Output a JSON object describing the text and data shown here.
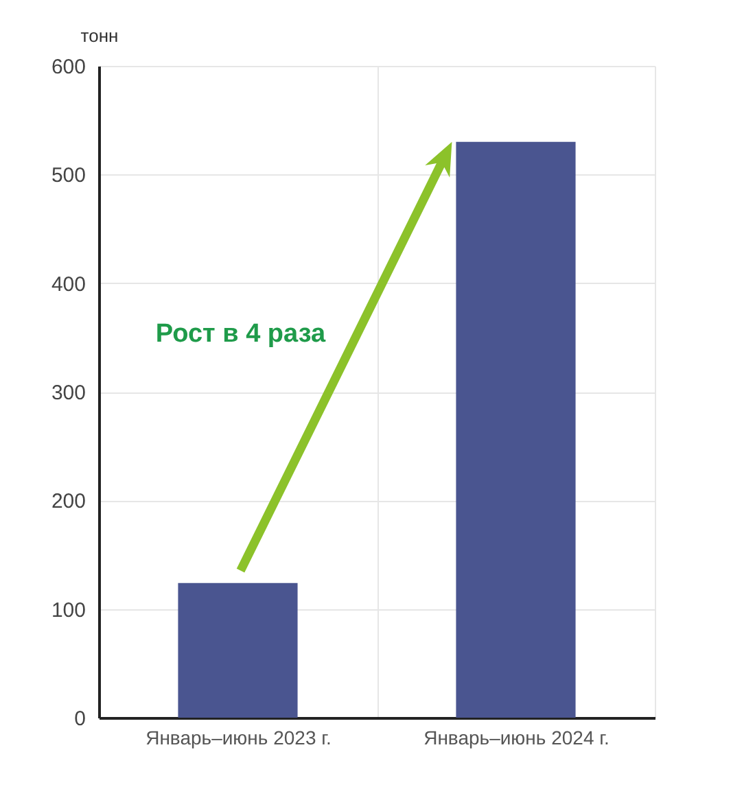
{
  "chart_data": {
    "type": "bar",
    "ylabel": "тонн",
    "categories": [
      "Январь–июнь 2023 г.",
      "Январь–июнь 2024 г."
    ],
    "values": [
      124,
      530
    ],
    "color": "#4a5590",
    "ylim": [
      0,
      600
    ],
    "yticks": [
      0,
      100,
      200,
      300,
      400,
      500,
      600
    ],
    "grid": true,
    "annotations": [
      "Рост в 4 раза"
    ]
  }
}
